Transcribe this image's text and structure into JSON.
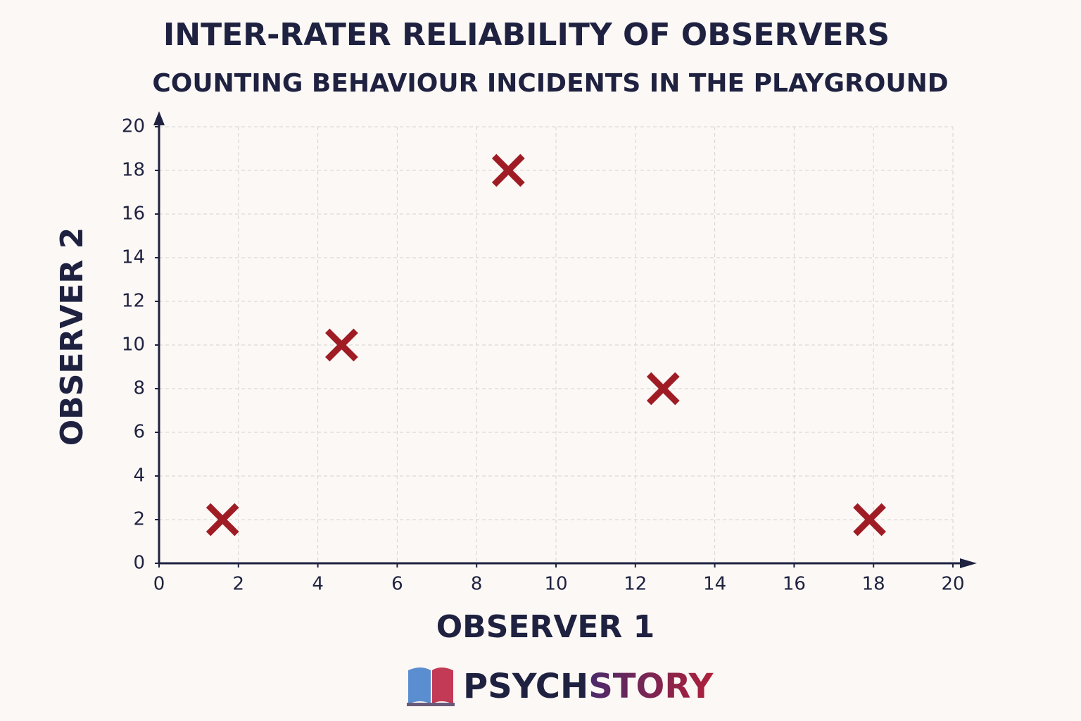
{
  "chart_data": {
    "type": "scatter",
    "title": "INTER-RATER RELIABILITY OF OBSERVERS",
    "subtitle": "COUNTING BEHAVIOUR INCIDENTS IN THE PLAYGROUND",
    "x_label": "OBSERVER 1",
    "y_label": "OBSERVER 2",
    "x": [
      1.6,
      4.6,
      8.8,
      12.7,
      17.9
    ],
    "values": [
      2,
      10,
      18,
      8,
      2
    ],
    "color": "#a01c24",
    "xlim": [
      0,
      20
    ],
    "ylim": [
      0,
      20
    ],
    "xticks": [
      0,
      2,
      4,
      6,
      8,
      10,
      12,
      14,
      16,
      18,
      20
    ],
    "yticks": [
      0,
      2,
      4,
      6,
      8,
      10,
      12,
      14,
      16,
      18,
      20
    ],
    "grid": true
  },
  "logo": "PSYCHSTORY"
}
